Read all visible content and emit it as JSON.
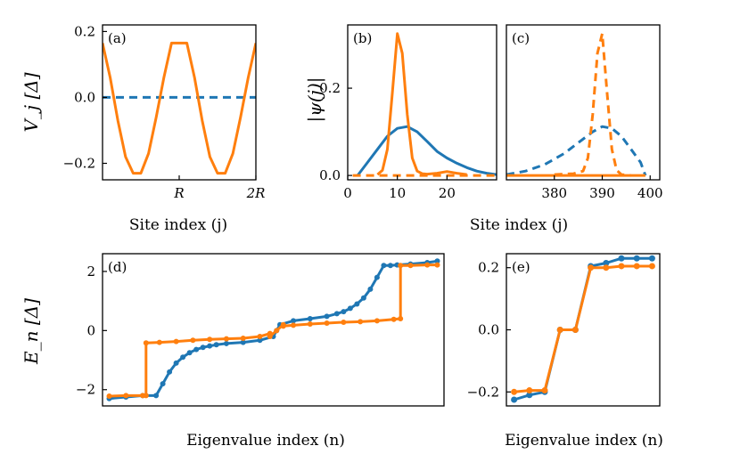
{
  "colors": {
    "blue": "#1f77b4",
    "orange": "#ff7f0e"
  },
  "chart_data": [
    {
      "panel": "(a)",
      "type": "line",
      "ylabel": "V_j [Δ]",
      "xlabel": "Site index (j)",
      "ylim": [
        -0.25,
        0.22
      ],
      "yticks": [
        0.2,
        0.0,
        -0.2
      ],
      "ytick_labels": [
        "0.2",
        "0.0",
        "−0.2"
      ],
      "xlim": [
        0,
        2
      ],
      "xticks": [
        1,
        2
      ],
      "xtick_labels": [
        "R",
        "2R"
      ],
      "series": [
        {
          "color": "blue",
          "style": "dashed",
          "x": [
            0,
            2
          ],
          "y": [
            0,
            0
          ]
        },
        {
          "color": "orange",
          "style": "solid",
          "x": [
            0,
            0.1,
            0.2,
            0.3,
            0.4,
            0.5,
            0.6,
            0.7,
            0.8,
            0.9,
            1.0,
            1.1,
            1.2,
            1.3,
            1.4,
            1.5,
            1.6,
            1.7,
            1.8,
            1.9,
            2.0
          ],
          "y": [
            0.165,
            0.06,
            -0.07,
            -0.18,
            -0.23,
            -0.23,
            -0.17,
            -0.06,
            0.06,
            0.165,
            0.165,
            0.165,
            0.06,
            -0.07,
            -0.18,
            -0.23,
            -0.23,
            -0.17,
            -0.06,
            0.06,
            0.165
          ]
        }
      ]
    },
    {
      "panel": "(b)",
      "type": "line",
      "ylabel": "|ψ(j)|",
      "xlim": [
        0,
        30
      ],
      "xticks": [
        0,
        10,
        20
      ],
      "xtick_labels": [
        "0",
        "10",
        "20"
      ],
      "ylim": [
        -0.01,
        0.345
      ],
      "yticks": [
        0.0,
        0.2
      ],
      "ytick_labels": [
        "0.0",
        "0.2"
      ],
      "series": [
        {
          "color": "blue",
          "style": "solid",
          "x": [
            2,
            4,
            6,
            8,
            10,
            12,
            14,
            16,
            18,
            20,
            22,
            24,
            26,
            28,
            30
          ],
          "y": [
            0.0,
            0.03,
            0.06,
            0.09,
            0.108,
            0.112,
            0.1,
            0.078,
            0.055,
            0.04,
            0.028,
            0.018,
            0.01,
            0.005,
            0.002
          ]
        },
        {
          "color": "orange",
          "style": "solid",
          "x": [
            6,
            7,
            8,
            9,
            10,
            11,
            12,
            13,
            14,
            15,
            16,
            18,
            20,
            22,
            24
          ],
          "y": [
            0.002,
            0.012,
            0.06,
            0.19,
            0.325,
            0.28,
            0.14,
            0.04,
            0.01,
            0.004,
            0.003,
            0.005,
            0.009,
            0.005,
            0.002
          ]
        },
        {
          "color": "orange",
          "style": "dashed",
          "x": [
            1,
            30
          ],
          "y": [
            0.0,
            0.0
          ]
        }
      ]
    },
    {
      "panel": "(c)",
      "type": "line",
      "xlim": [
        370,
        402
      ],
      "xticks": [
        380,
        390,
        400
      ],
      "xtick_labels": [
        "380",
        "390",
        "400"
      ],
      "ylim": [
        -0.01,
        0.345
      ],
      "series": [
        {
          "color": "blue",
          "style": "dashed",
          "x": [
            370,
            374,
            378,
            382,
            385,
            388,
            390,
            392,
            394,
            396,
            398,
            399
          ],
          "y": [
            0.002,
            0.01,
            0.025,
            0.05,
            0.075,
            0.1,
            0.112,
            0.108,
            0.09,
            0.06,
            0.03,
            0.0
          ]
        },
        {
          "color": "orange",
          "style": "dashed",
          "x": [
            380,
            384,
            386,
            387,
            388,
            389,
            390,
            391,
            392,
            393,
            394,
            396
          ],
          "y": [
            0.002,
            0.004,
            0.01,
            0.04,
            0.14,
            0.28,
            0.325,
            0.19,
            0.06,
            0.012,
            0.002,
            0.0
          ]
        },
        {
          "color": "orange",
          "style": "solid",
          "x": [
            370,
            399
          ],
          "y": [
            0.0,
            0.0
          ]
        }
      ]
    },
    {
      "panel": "(d)",
      "type": "line",
      "ylabel": "E_n [Δ]",
      "xlabel": "Eigenvalue index (n)",
      "xlim": [
        -2,
        100
      ],
      "ylim": [
        -2.55,
        2.6
      ],
      "yticks": [
        2,
        0,
        -2
      ],
      "ytick_labels": [
        "2",
        "0",
        "−2"
      ],
      "series": [
        {
          "color": "blue",
          "style": "solid-markers",
          "x": [
            0,
            5,
            10,
            14,
            16,
            18,
            20,
            22,
            24,
            26,
            28,
            30,
            32,
            35,
            40,
            45,
            49,
            50,
            51,
            55,
            60,
            65,
            68,
            70,
            72,
            74,
            76,
            78,
            80,
            82,
            84,
            86,
            90,
            95,
            98
          ],
          "y": [
            -2.3,
            -2.25,
            -2.2,
            -2.2,
            -1.8,
            -1.4,
            -1.1,
            -0.9,
            -0.75,
            -0.64,
            -0.57,
            -0.52,
            -0.48,
            -0.44,
            -0.4,
            -0.33,
            -0.2,
            0.0,
            0.2,
            0.33,
            0.4,
            0.48,
            0.57,
            0.64,
            0.75,
            0.9,
            1.1,
            1.4,
            1.8,
            2.2,
            2.2,
            2.22,
            2.25,
            2.3,
            2.35
          ]
        },
        {
          "color": "orange",
          "style": "solid-markers",
          "x": [
            0,
            5,
            10,
            11,
            11,
            15,
            20,
            25,
            30,
            35,
            40,
            45,
            48,
            48,
            50,
            52,
            52,
            55,
            60,
            65,
            70,
            75,
            80,
            85,
            87,
            87,
            90,
            95,
            98
          ],
          "y": [
            -2.22,
            -2.2,
            -2.2,
            -2.2,
            -0.42,
            -0.4,
            -0.37,
            -0.33,
            -0.3,
            -0.28,
            -0.26,
            -0.2,
            -0.1,
            -0.2,
            0.0,
            0.2,
            0.15,
            0.18,
            0.22,
            0.25,
            0.28,
            0.3,
            0.33,
            0.38,
            0.4,
            2.2,
            2.2,
            2.22,
            2.22
          ]
        }
      ]
    },
    {
      "panel": "(e)",
      "type": "line",
      "xlabel": "Eigenvalue index (n)",
      "xlim": [
        -0.5,
        9.5
      ],
      "ylim": [
        -0.245,
        0.245
      ],
      "yticks": [
        0.2,
        0.0,
        -0.2
      ],
      "ytick_labels": [
        "0.2",
        "0.0",
        "−0.2"
      ],
      "series": [
        {
          "color": "blue",
          "style": "solid-markers",
          "x": [
            0,
            1,
            2,
            3,
            4,
            5,
            6,
            7,
            8,
            9
          ],
          "y": [
            -0.225,
            -0.21,
            -0.2,
            0.0,
            0.0,
            0.205,
            0.215,
            0.23,
            0.23,
            0.23
          ]
        },
        {
          "color": "orange",
          "style": "solid-markers",
          "x": [
            0,
            1,
            2,
            3,
            4,
            5,
            6,
            7,
            8,
            9
          ],
          "y": [
            -0.2,
            -0.195,
            -0.195,
            0.0,
            0.0,
            0.2,
            0.2,
            0.205,
            0.205,
            0.205
          ]
        }
      ]
    }
  ]
}
